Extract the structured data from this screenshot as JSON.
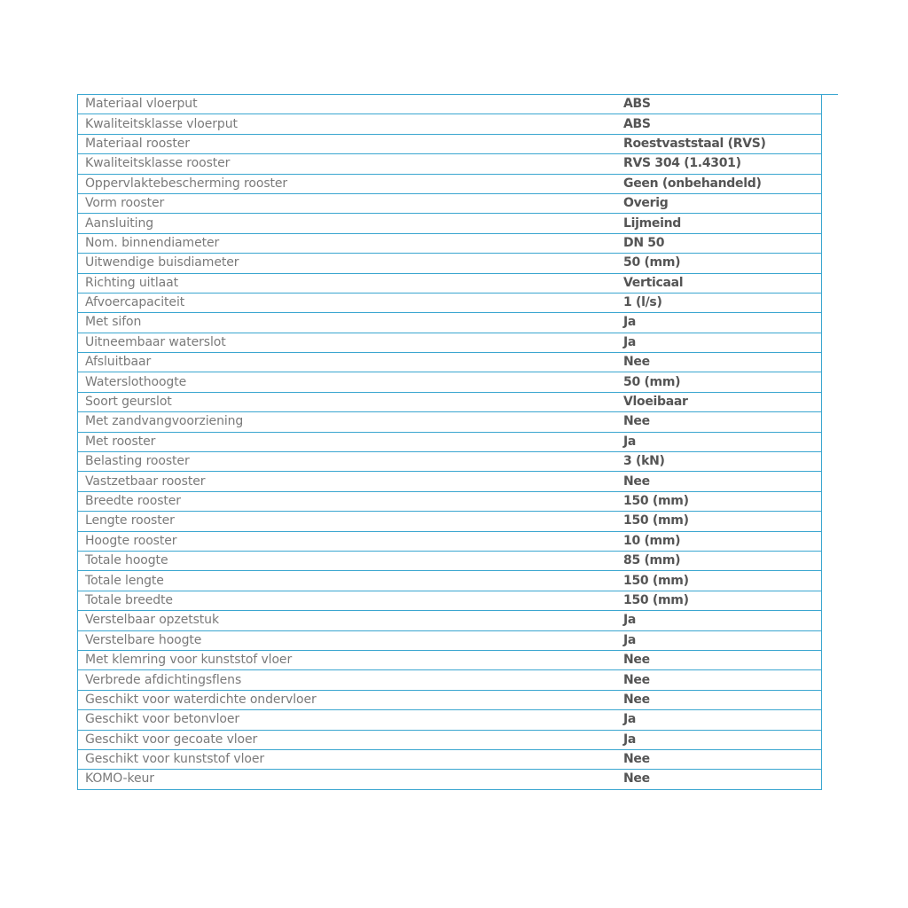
{
  "specs": [
    {
      "label": "Materiaal vloerput",
      "value": "ABS"
    },
    {
      "label": "Kwaliteitsklasse vloerput",
      "value": "ABS"
    },
    {
      "label": "Materiaal rooster",
      "value": "Roestvaststaal (RVS)"
    },
    {
      "label": "Kwaliteitsklasse rooster",
      "value": "RVS 304 (1.4301)"
    },
    {
      "label": "Oppervlaktebescherming rooster",
      "value": "Geen (onbehandeld)"
    },
    {
      "label": "Vorm rooster",
      "value": "Overig"
    },
    {
      "label": "Aansluiting",
      "value": "Lijmeind"
    },
    {
      "label": "Nom. binnendiameter",
      "value": "DN 50"
    },
    {
      "label": "Uitwendige buisdiameter",
      "value": "50 (mm)"
    },
    {
      "label": "Richting uitlaat",
      "value": "Verticaal"
    },
    {
      "label": "Afvoercapaciteit",
      "value": "1 (l/s)"
    },
    {
      "label": "Met sifon",
      "value": "Ja"
    },
    {
      "label": "Uitneembaar waterslot",
      "value": "Ja"
    },
    {
      "label": "Afsluitbaar",
      "value": "Nee"
    },
    {
      "label": "Waterslothoogte",
      "value": "50 (mm)"
    },
    {
      "label": "Soort geurslot",
      "value": "Vloeibaar"
    },
    {
      "label": "Met zandvangvoorziening",
      "value": "Nee"
    },
    {
      "label": "Met rooster",
      "value": "Ja"
    },
    {
      "label": "Belasting rooster",
      "value": "3 (kN)"
    },
    {
      "label": "Vastzetbaar rooster",
      "value": "Nee"
    },
    {
      "label": "Breedte rooster",
      "value": "150 (mm)"
    },
    {
      "label": "Lengte rooster",
      "value": "150 (mm)"
    },
    {
      "label": "Hoogte rooster",
      "value": "10 (mm)"
    },
    {
      "label": "Totale hoogte",
      "value": "85 (mm)"
    },
    {
      "label": "Totale lengte",
      "value": "150 (mm)"
    },
    {
      "label": "Totale breedte",
      "value": "150 (mm)"
    },
    {
      "label": "Verstelbaar opzetstuk",
      "value": "Ja"
    },
    {
      "label": "Verstelbare hoogte",
      "value": "Ja"
    },
    {
      "label": "Met klemring voor kunststof vloer",
      "value": "Nee"
    },
    {
      "label": "Verbrede afdichtingsflens",
      "value": "Nee"
    },
    {
      "label": "Geschikt voor waterdichte ondervloer",
      "value": "Nee"
    },
    {
      "label": "Geschikt voor betonvloer",
      "value": "Ja"
    },
    {
      "label": "Geschikt voor gecoate vloer",
      "value": "Ja"
    },
    {
      "label": "Geschikt voor kunststof vloer",
      "value": "Nee"
    },
    {
      "label": "KOMO-keur",
      "value": "Nee"
    }
  ],
  "colors": {
    "border": "#3aa6d0",
    "label": "#7a7a7a",
    "value": "#555555"
  }
}
